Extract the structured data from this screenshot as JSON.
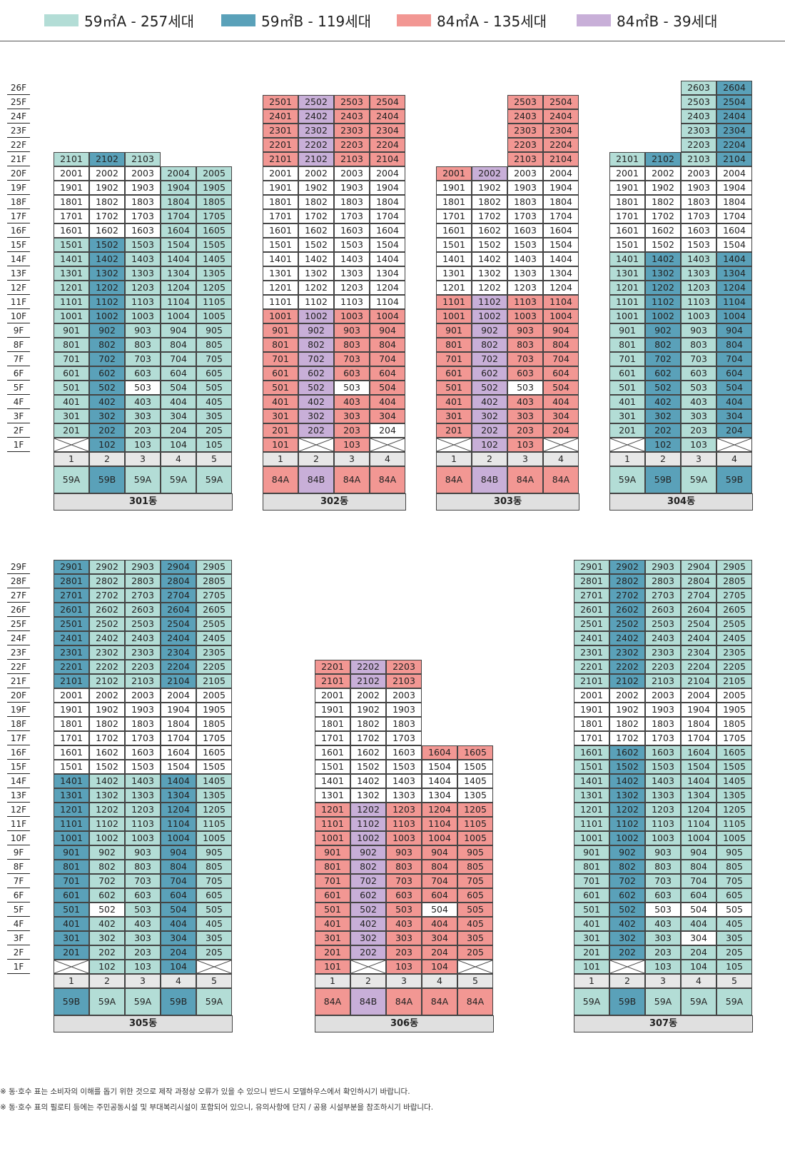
{
  "legend": [
    {
      "name": "59A-legend",
      "label": "59㎡A - 257세대",
      "color": "#b3ddd6"
    },
    {
      "name": "59B-legend",
      "label": "59㎡B - 119세대",
      "color": "#5aa1b9"
    },
    {
      "name": "84A-legend",
      "label": "84㎡A - 135세대",
      "color": "#f29793"
    },
    {
      "name": "84B-legend",
      "label": "84㎡B - 39세대",
      "color": "#c8afd8"
    }
  ],
  "colors": {
    "59A": "#b3ddd6",
    "59B": "#5aa1b9",
    "84A": "#f29793",
    "84B": "#c8afd8",
    "empty": "#ffffff"
  },
  "floor_labels_top": [
    "26F",
    "25F",
    "24F",
    "23F",
    "22F",
    "21F",
    "20F",
    "19F",
    "18F",
    "17F",
    "16F",
    "15F",
    "14F",
    "13F",
    "12F",
    "11F",
    "10F",
    "9F",
    "8F",
    "7F",
    "6F",
    "5F",
    "4F",
    "3F",
    "2F",
    "1F"
  ],
  "floor_labels_bottom": [
    "29F",
    "28F",
    "27F",
    "26F",
    "25F",
    "24F",
    "23F",
    "22F",
    "21F",
    "20F",
    "19F",
    "18F",
    "17F",
    "16F",
    "15F",
    "14F",
    "13F",
    "12F",
    "11F",
    "10F",
    "9F",
    "8F",
    "7F",
    "6F",
    "5F",
    "4F",
    "3F",
    "2F",
    "1F"
  ],
  "buildings": [
    {
      "name": "301동",
      "line_types": [
        "59A",
        "59B",
        "59A",
        "59A",
        "59A"
      ],
      "line_labels": [
        "1",
        "2",
        "3",
        "4",
        "5"
      ],
      "type_labels": [
        "59A",
        "59B",
        "59A",
        "59A",
        "59A"
      ],
      "lines": [
        {
          "line": 1,
          "floors": [
            2,
            21
          ],
          "blank1": true,
          "plain": [
            [
              16,
              20
            ]
          ]
        },
        {
          "line": 2,
          "floors": [
            1,
            21
          ],
          "plain": [
            [
              16,
              20
            ]
          ]
        },
        {
          "line": 3,
          "floors": [
            1,
            21
          ],
          "plain": [
            [
              16,
              20
            ],
            [
              5,
              5
            ]
          ]
        },
        {
          "line": 4,
          "floors": [
            1,
            20
          ],
          "plain": []
        },
        {
          "line": 5,
          "floors": [
            1,
            20
          ],
          "plain": []
        }
      ]
    },
    {
      "name": "302동",
      "line_types": [
        "84A",
        "84B",
        "84A",
        "84A"
      ],
      "line_labels": [
        "1",
        "2",
        "3",
        "4"
      ],
      "type_labels": [
        "84A",
        "84B",
        "84A",
        "84A"
      ],
      "lines": [
        {
          "line": 1,
          "floors": [
            1,
            25
          ],
          "plain": [
            [
              11,
              20
            ]
          ]
        },
        {
          "line": 2,
          "floors": [
            2,
            25
          ],
          "blank1": true,
          "plain": [
            [
              11,
              20
            ]
          ]
        },
        {
          "line": 3,
          "floors": [
            1,
            25
          ],
          "plain": [
            [
              11,
              20
            ],
            [
              5,
              5
            ]
          ]
        },
        {
          "line": 4,
          "floors": [
            2,
            25
          ],
          "blank1": true,
          "plain": [
            [
              11,
              20
            ],
            [
              2,
              2
            ]
          ]
        }
      ]
    },
    {
      "name": "303동",
      "line_types": [
        "84A",
        "84B",
        "84A",
        "84A"
      ],
      "line_labels": [
        "1",
        "2",
        "3",
        "4"
      ],
      "type_labels": [
        "84A",
        "84B",
        "84A",
        "84A"
      ],
      "lines": [
        {
          "line": 1,
          "floors": [
            2,
            20
          ],
          "blank1": true,
          "plain": [
            [
              12,
              19
            ]
          ]
        },
        {
          "line": 2,
          "floors": [
            1,
            20
          ],
          "plain": [
            [
              12,
              19
            ]
          ]
        },
        {
          "line": 3,
          "floors": [
            1,
            25
          ],
          "plain": [
            [
              12,
              20
            ],
            [
              5,
              5
            ]
          ]
        },
        {
          "line": 4,
          "floors": [
            2,
            25
          ],
          "blank1": true,
          "plain": [
            [
              12,
              20
            ]
          ]
        }
      ]
    },
    {
      "name": "304동",
      "line_types": [
        "59A",
        "59B",
        "59A",
        "59B"
      ],
      "line_labels": [
        "1",
        "2",
        "3",
        "4"
      ],
      "type_labels": [
        "59A",
        "59B",
        "59A",
        "59B"
      ],
      "lines": [
        {
          "line": 1,
          "floors": [
            2,
            21
          ],
          "blank1": true,
          "plain": [
            [
              15,
              20
            ]
          ]
        },
        {
          "line": 2,
          "floors": [
            1,
            21
          ],
          "plain": [
            [
              15,
              20
            ]
          ]
        },
        {
          "line": 3,
          "floors": [
            1,
            26
          ],
          "plain": [
            [
              15,
              20
            ]
          ]
        },
        {
          "line": 4,
          "floors": [
            2,
            26
          ],
          "blank1": true,
          "plain": [
            [
              15,
              20
            ]
          ]
        }
      ]
    },
    {
      "name": "305동",
      "line_types": [
        "59B",
        "59A",
        "59A",
        "59B",
        "59A"
      ],
      "line_labels": [
        "1",
        "2",
        "3",
        "4",
        "5"
      ],
      "type_labels": [
        "59B",
        "59A",
        "59A",
        "59B",
        "59A"
      ],
      "lines": [
        {
          "line": 1,
          "floors": [
            2,
            29
          ],
          "blank1": true,
          "plain": [
            [
              15,
              20
            ]
          ]
        },
        {
          "line": 2,
          "floors": [
            1,
            29
          ],
          "plain": [
            [
              15,
              20
            ],
            [
              5,
              5
            ]
          ]
        },
        {
          "line": 3,
          "floors": [
            1,
            29
          ],
          "plain": [
            [
              15,
              20
            ]
          ]
        },
        {
          "line": 4,
          "floors": [
            1,
            29
          ],
          "plain": [
            [
              15,
              20
            ]
          ]
        },
        {
          "line": 5,
          "floors": [
            2,
            29
          ],
          "blank1": true,
          "plain": [
            [
              15,
              20
            ]
          ]
        }
      ]
    },
    {
      "name": "306동",
      "line_types": [
        "84A",
        "84B",
        "84A",
        "84A",
        "84A"
      ],
      "line_labels": [
        "1",
        "2",
        "3",
        "4",
        "5"
      ],
      "type_labels": [
        "84A",
        "84B",
        "84A",
        "84A",
        "84A"
      ],
      "lines": [
        {
          "line": 1,
          "floors": [
            1,
            22
          ],
          "plain": [
            [
              13,
              20
            ]
          ]
        },
        {
          "line": 2,
          "floors": [
            2,
            22
          ],
          "blank1": true,
          "plain": [
            [
              13,
              20
            ]
          ]
        },
        {
          "line": 3,
          "floors": [
            1,
            22
          ],
          "plain": [
            [
              13,
              20
            ]
          ]
        },
        {
          "line": 4,
          "floors": [
            1,
            16
          ],
          "plain": [
            [
              13,
              15
            ],
            [
              5,
              5
            ]
          ]
        },
        {
          "line": 5,
          "floors": [
            2,
            16
          ],
          "blank1": true,
          "plain": [
            [
              13,
              15
            ]
          ]
        }
      ]
    },
    {
      "name": "307동",
      "line_types": [
        "59A",
        "59B",
        "59A",
        "59A",
        "59A"
      ],
      "line_labels": [
        "1",
        "2",
        "3",
        "4",
        "5"
      ],
      "type_labels": [
        "59A",
        "59B",
        "59A",
        "59A",
        "59A"
      ],
      "lines": [
        {
          "line": 1,
          "floors": [
            1,
            29
          ],
          "plain": [
            [
              17,
              20
            ]
          ]
        },
        {
          "line": 2,
          "floors": [
            2,
            29
          ],
          "blank1": true,
          "plain": [
            [
              17,
              20
            ]
          ]
        },
        {
          "line": 3,
          "floors": [
            1,
            29
          ],
          "plain": [
            [
              17,
              20
            ],
            [
              5,
              5
            ]
          ]
        },
        {
          "line": 4,
          "floors": [
            1,
            29
          ],
          "plain": [
            [
              17,
              20
            ],
            [
              5,
              5
            ],
            [
              3,
              3
            ]
          ]
        },
        {
          "line": 5,
          "floors": [
            1,
            29
          ],
          "plain": [
            [
              17,
              20
            ],
            [
              5,
              5
            ]
          ]
        }
      ]
    }
  ],
  "notes": [
    "※ 동·호수 표는 소비자의 이해를 돕기 위한 것으로 제작 과정상 오류가 있을 수 있으니 반드시 모델하우스에서 확인하시기 바랍니다.",
    "※ 동·호수 표의 필로티 등에는 주민공동시설 및 부대복리시설이 포함되어 있으니, 유의사항에 단지 / 공용 시설부분을 참조하시기 바랍니다."
  ]
}
